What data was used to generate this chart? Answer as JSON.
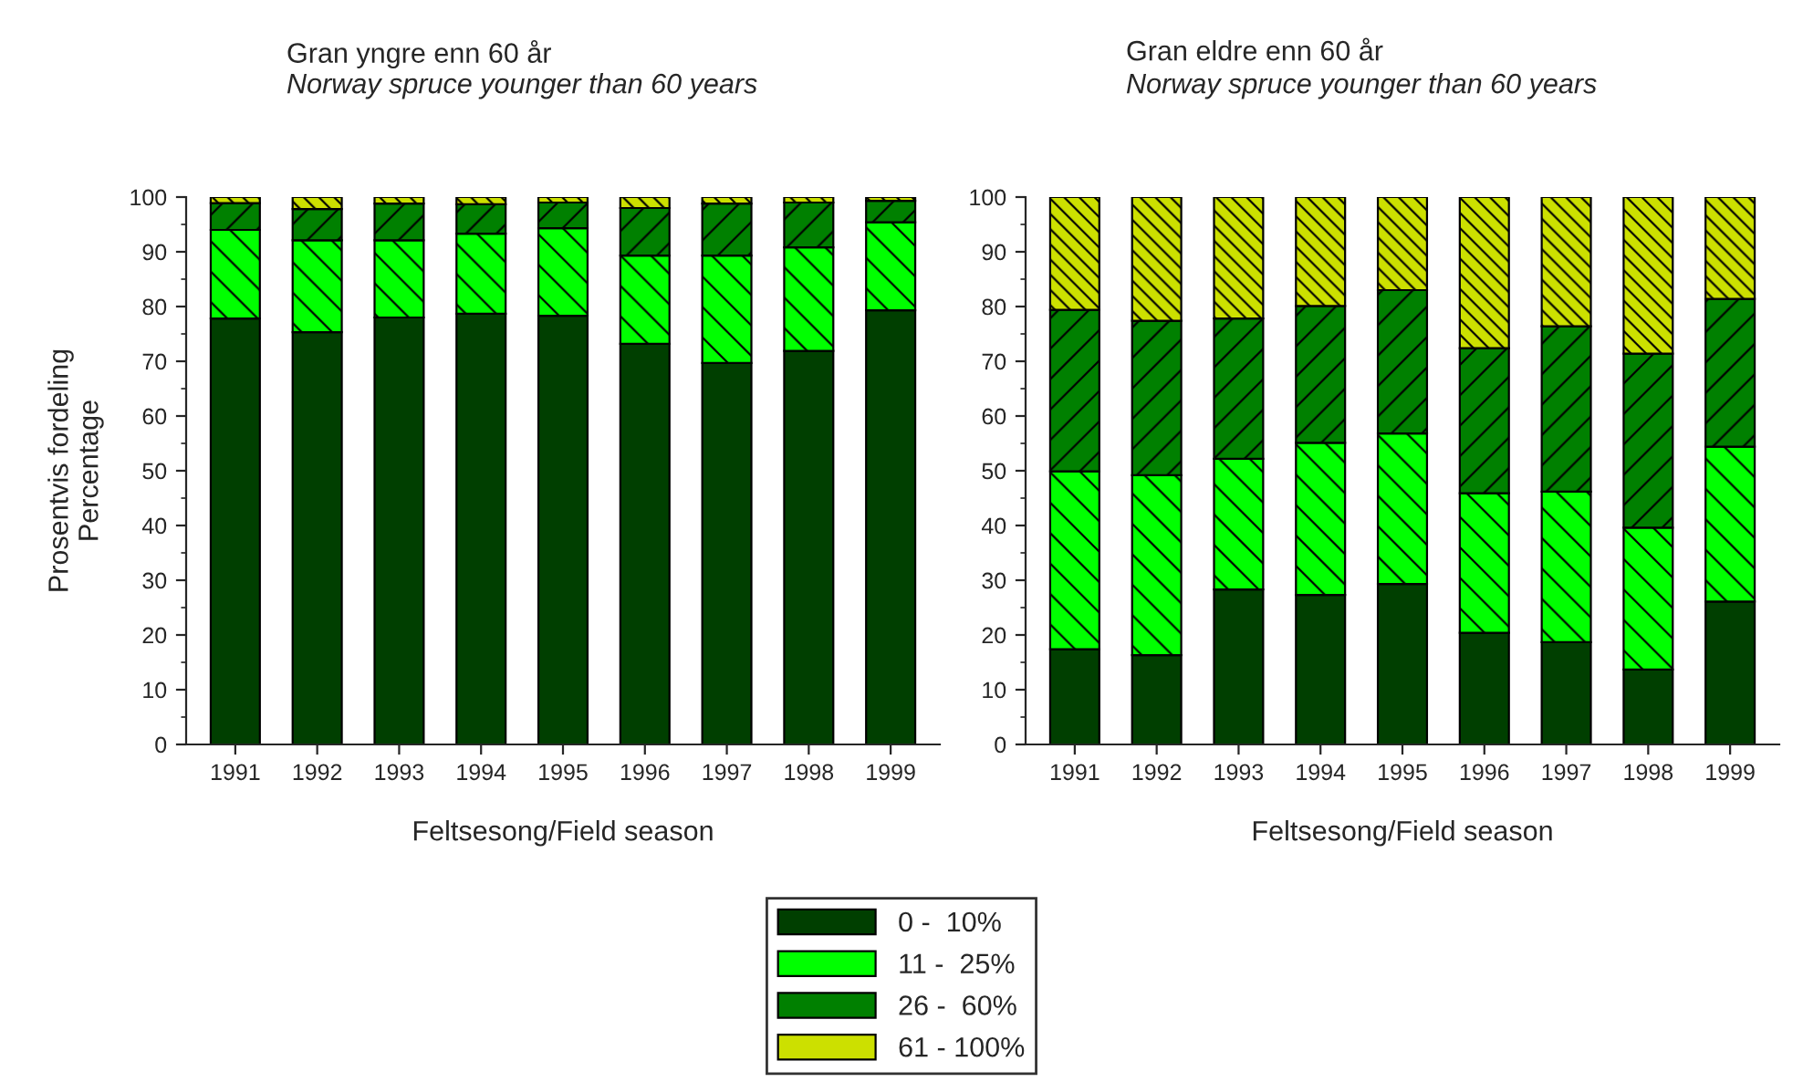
{
  "chart_data": [
    {
      "type": "bar",
      "stacked": true,
      "title": "Gran yngre enn 60 år",
      "subtitle": "Norway spruce younger than 60 years",
      "xlabel": "Feltsesong/Field season",
      "ylabel": "Prosentvis fordeling\nPercentage",
      "categories": [
        "1991",
        "1992",
        "1993",
        "1994",
        "1995",
        "1996",
        "1997",
        "1998",
        "1999"
      ],
      "ylim": [
        0,
        100
      ],
      "yticks": [
        0,
        10,
        20,
        30,
        40,
        50,
        60,
        70,
        80,
        90,
        100
      ],
      "grid": false,
      "legend": "bottom",
      "series": [
        {
          "name": "0 -  10%",
          "color": "#003f00",
          "values": [
            77.8,
            75.3,
            78,
            78.7,
            78.3,
            73.2,
            69.7,
            71.9,
            79.3
          ]
        },
        {
          "name": "11 -  25%",
          "color": "#00ff00",
          "values": [
            16.2,
            16.8,
            14.1,
            14.6,
            16,
            16.1,
            19.6,
            18.9,
            16.1
          ]
        },
        {
          "name": "26 -  60%",
          "color": "#008000",
          "values": [
            4.9,
            5.7,
            6.7,
            5.4,
            4.7,
            8.7,
            9.5,
            8.2,
            3.9
          ]
        },
        {
          "name": "61 - 100%",
          "color": "#cce000",
          "values": [
            1.1,
            2.2,
            1.2,
            1.3,
            1,
            2,
            1.2,
            1,
            0.7
          ]
        }
      ]
    },
    {
      "type": "bar",
      "stacked": true,
      "title": "Gran eldre enn 60 år",
      "subtitle": "Norway spruce younger than 60 years",
      "xlabel": "Feltsesong/Field season",
      "categories": [
        "1991",
        "1992",
        "1993",
        "1994",
        "1995",
        "1996",
        "1997",
        "1998",
        "1999"
      ],
      "ylim": [
        0,
        100
      ],
      "yticks": [
        0,
        10,
        20,
        30,
        40,
        50,
        60,
        70,
        80,
        90,
        100
      ],
      "grid": false,
      "series": [
        {
          "color": "#003f00",
          "values": [
            17.4,
            16.3,
            28.3,
            27.3,
            29.3,
            20.4,
            18.7,
            13.7,
            26.1
          ]
        },
        {
          "color": "#00ff00",
          "values": [
            32.5,
            32.9,
            23.9,
            27.8,
            27.5,
            25.5,
            27.5,
            25.9,
            28.3
          ]
        },
        {
          "color": "#008000",
          "values": [
            29.5,
            28.2,
            25.6,
            25,
            26.2,
            26.5,
            30.2,
            31.8,
            27
          ]
        },
        {
          "color": "#cce000",
          "values": [
            20.6,
            22.6,
            22.2,
            19.9,
            17,
            27.6,
            23.6,
            28.6,
            18.6
          ]
        }
      ]
    }
  ]
}
